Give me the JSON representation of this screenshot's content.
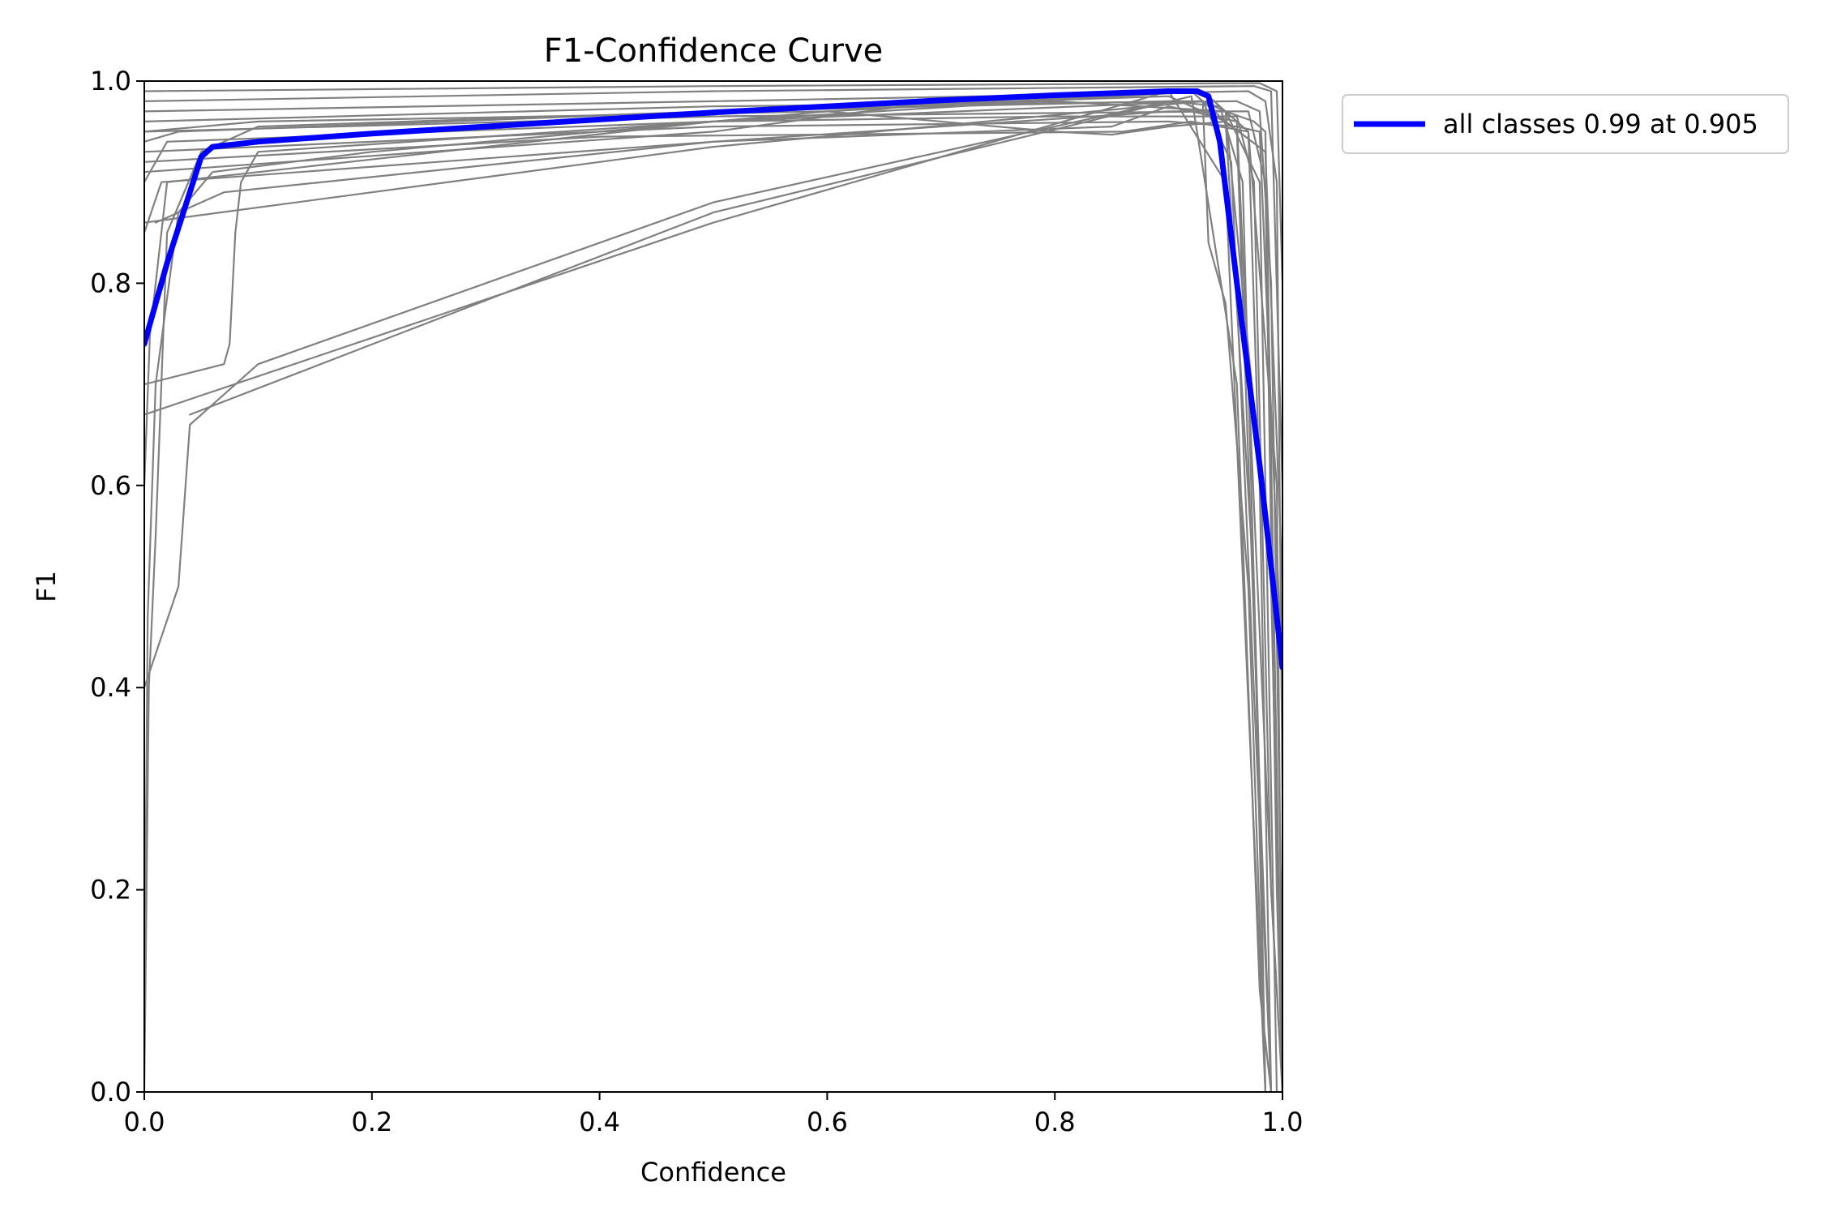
{
  "chart_data": {
    "type": "line",
    "title": "F1-Confidence Curve",
    "xlabel": "Confidence",
    "ylabel": "F1",
    "xlim": [
      0,
      1
    ],
    "ylim": [
      0,
      1
    ],
    "xticks": [
      "0.0",
      "0.2",
      "0.4",
      "0.6",
      "0.8",
      "1.0"
    ],
    "yticks": [
      "0.0",
      "0.2",
      "0.4",
      "0.6",
      "0.8",
      "1.0"
    ],
    "grid": false,
    "legend_position": "outside-upper-right",
    "colors": {
      "per_class": "#808080",
      "all_classes": "#0000ff"
    },
    "legend": [
      {
        "label": "all classes 0.99 at 0.905",
        "color": "#0000ff"
      }
    ],
    "series": [
      {
        "name": "all classes 0.99 at 0.905",
        "color": "#0000ff",
        "points": [
          [
            0,
            0.74
          ],
          [
            0.02,
            0.82
          ],
          [
            0.04,
            0.89
          ],
          [
            0.05,
            0.925
          ],
          [
            0.06,
            0.935
          ],
          [
            0.1,
            0.94
          ],
          [
            0.2,
            0.948
          ],
          [
            0.3,
            0.955
          ],
          [
            0.4,
            0.962
          ],
          [
            0.5,
            0.969
          ],
          [
            0.6,
            0.975
          ],
          [
            0.7,
            0.981
          ],
          [
            0.8,
            0.986
          ],
          [
            0.9,
            0.99
          ],
          [
            0.925,
            0.99
          ],
          [
            0.935,
            0.985
          ],
          [
            0.945,
            0.94
          ],
          [
            0.96,
            0.8
          ],
          [
            0.98,
            0.62
          ],
          [
            1.0,
            0.42
          ]
        ]
      },
      {
        "color": "#808080",
        "points": [
          [
            0,
            0
          ],
          [
            0.004,
            0.4
          ],
          [
            0.01,
            0.55
          ],
          [
            0.02,
            0.85
          ],
          [
            0.05,
            0.93
          ],
          [
            0.1,
            0.955
          ],
          [
            0.5,
            0.97
          ],
          [
            0.9,
            0.985
          ],
          [
            0.95,
            0.96
          ],
          [
            0.975,
            0.5
          ],
          [
            0.985,
            0
          ]
        ]
      },
      {
        "color": "#808080",
        "points": [
          [
            0,
            0.07
          ],
          [
            0.003,
            0.47
          ],
          [
            0.01,
            0.7
          ],
          [
            0.03,
            0.87
          ],
          [
            0.06,
            0.91
          ],
          [
            0.2,
            0.93
          ],
          [
            0.6,
            0.97
          ],
          [
            0.92,
            0.99
          ],
          [
            0.96,
            0.95
          ],
          [
            0.98,
            0.3
          ],
          [
            0.99,
            0
          ]
        ]
      },
      {
        "color": "#808080",
        "points": [
          [
            0,
            0.7
          ],
          [
            0.07,
            0.72
          ],
          [
            0.075,
            0.74
          ],
          [
            0.08,
            0.85
          ],
          [
            0.085,
            0.9
          ],
          [
            0.1,
            0.93
          ],
          [
            0.5,
            0.96
          ],
          [
            0.93,
            0.98
          ],
          [
            0.955,
            0.92
          ],
          [
            0.99,
            0
          ]
        ]
      },
      {
        "color": "#808080",
        "points": [
          [
            0,
            0.67
          ],
          [
            0.5,
            0.86
          ],
          [
            0.9,
            0.99
          ],
          [
            0.95,
            0.9
          ],
          [
            0.985,
            0
          ]
        ]
      },
      {
        "color": "#808080",
        "points": [
          [
            0.04,
            0.67
          ],
          [
            0.5,
            0.87
          ],
          [
            0.92,
            0.985
          ],
          [
            0.96,
            0.7
          ],
          [
            0.98,
            0.1
          ],
          [
            0.99,
            0
          ]
        ]
      },
      {
        "color": "#808080",
        "points": [
          [
            0,
            0.4
          ],
          [
            0.03,
            0.5
          ],
          [
            0.04,
            0.66
          ],
          [
            0.1,
            0.72
          ],
          [
            0.5,
            0.88
          ],
          [
            0.9,
            0.98
          ],
          [
            0.93,
            0.98
          ],
          [
            0.935,
            0.84
          ],
          [
            0.95,
            0.78
          ],
          [
            0.97,
            0.5
          ],
          [
            0.985,
            0
          ]
        ]
      },
      {
        "color": "#808080",
        "points": [
          [
            0,
            0.86
          ],
          [
            0.5,
            0.935
          ],
          [
            0.93,
            0.98
          ],
          [
            0.95,
            0.97
          ],
          [
            0.99,
            0.5
          ],
          [
            1.0,
            0
          ]
        ]
      },
      {
        "color": "#808080",
        "points": [
          [
            0.01,
            0.86
          ],
          [
            0.07,
            0.89
          ],
          [
            0.5,
            0.94
          ],
          [
            0.85,
            0.955
          ],
          [
            0.9,
            0.975
          ],
          [
            0.96,
            0.96
          ],
          [
            0.99,
            0.2
          ],
          [
            1.0,
            0
          ]
        ]
      },
      {
        "color": "#808080",
        "points": [
          [
            0,
            0.91
          ],
          [
            0.5,
            0.95
          ],
          [
            0.7,
            0.98
          ],
          [
            0.8,
            0.98
          ],
          [
            0.95,
            0.97
          ],
          [
            0.98,
            0.9
          ],
          [
            0.995,
            0
          ]
        ]
      },
      {
        "color": "#808080",
        "points": [
          [
            0,
            0.92
          ],
          [
            0.4,
            0.945
          ],
          [
            0.86,
            0.95
          ],
          [
            0.92,
            0.96
          ],
          [
            0.97,
            0.95
          ],
          [
            0.995,
            0.6
          ],
          [
            1.0,
            0
          ]
        ]
      },
      {
        "color": "#808080",
        "points": [
          [
            0,
            0.93
          ],
          [
            0.5,
            0.955
          ],
          [
            0.9,
            0.96
          ],
          [
            0.96,
            0.955
          ],
          [
            0.98,
            0.95
          ],
          [
            1.0,
            0.4
          ]
        ]
      },
      {
        "color": "#808080",
        "points": [
          [
            0,
            0.95
          ],
          [
            0.5,
            0.965
          ],
          [
            0.95,
            0.97
          ],
          [
            0.975,
            0.96
          ],
          [
            0.985,
            0.95
          ],
          [
            1.0,
            0
          ]
        ]
      },
      {
        "color": "#808080",
        "points": [
          [
            0,
            0.96
          ],
          [
            0.5,
            0.975
          ],
          [
            0.96,
            0.98
          ],
          [
            0.98,
            0.97
          ],
          [
            0.99,
            0.8
          ],
          [
            1.0,
            0.1
          ]
        ]
      },
      {
        "color": "#808080",
        "points": [
          [
            0,
            0.97
          ],
          [
            0.5,
            0.98
          ],
          [
            0.97,
            0.99
          ],
          [
            0.985,
            0.98
          ],
          [
            0.995,
            0.9
          ],
          [
            1.0,
            0.3
          ]
        ]
      },
      {
        "color": "#808080",
        "points": [
          [
            0,
            0.98
          ],
          [
            0.5,
            0.99
          ],
          [
            0.975,
            0.995
          ],
          [
            0.99,
            0.99
          ],
          [
            1.0,
            0.6
          ]
        ]
      },
      {
        "color": "#808080",
        "points": [
          [
            0,
            0.99
          ],
          [
            0.5,
            0.995
          ],
          [
            0.98,
            0.998
          ],
          [
            0.995,
            0.99
          ],
          [
            1.0,
            0.8
          ]
        ]
      },
      {
        "color": "#808080",
        "points": [
          [
            0,
            0.94
          ],
          [
            0.03,
            0.95
          ],
          [
            0.5,
            0.97
          ],
          [
            0.9,
            0.98
          ],
          [
            0.945,
            0.975
          ],
          [
            0.965,
            0.9
          ],
          [
            0.98,
            0.3
          ],
          [
            0.985,
            0
          ]
        ]
      },
      {
        "color": "#808080",
        "points": [
          [
            0,
            0.9
          ],
          [
            0.02,
            0.94
          ],
          [
            0.5,
            0.96
          ],
          [
            0.8,
            0.965
          ],
          [
            0.96,
            0.965
          ],
          [
            0.975,
            0.9
          ],
          [
            0.99,
            0.2
          ],
          [
            1.0,
            0
          ]
        ]
      },
      {
        "color": "#808080",
        "points": [
          [
            0,
            0.95
          ],
          [
            0.1,
            0.96
          ],
          [
            0.6,
            0.97
          ],
          [
            0.8,
            0.95
          ],
          [
            0.85,
            0.947
          ],
          [
            0.9,
            0.955
          ],
          [
            0.95,
            0.96
          ],
          [
            0.985,
            0.93
          ],
          [
            1.0,
            0.5
          ]
        ]
      },
      {
        "color": "#808080",
        "points": [
          [
            0,
            0.85
          ],
          [
            0.015,
            0.9
          ],
          [
            0.5,
            0.94
          ],
          [
            0.9,
            0.97
          ],
          [
            0.97,
            0.97
          ],
          [
            0.985,
            0.9
          ],
          [
            0.995,
            0.2
          ],
          [
            1.0,
            0
          ]
        ]
      },
      {
        "color": "#808080",
        "points": [
          [
            0,
            0.6
          ],
          [
            0.005,
            0.75
          ],
          [
            0.02,
            0.9
          ],
          [
            0.5,
            0.96
          ],
          [
            0.93,
            0.99
          ],
          [
            0.97,
            0.95
          ],
          [
            0.98,
            0.6
          ],
          [
            0.99,
            0
          ]
        ]
      }
    ]
  }
}
